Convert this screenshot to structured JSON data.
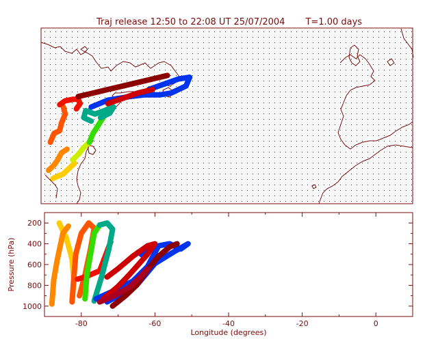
{
  "title": "Traj release 12:50 to 22:08 UT 25/07/2004",
  "time_label": "T=1.00 days",
  "colors": {
    "frame": "#7a0a0a",
    "dots": "#7a0a0a"
  },
  "chart_data": [
    {
      "type": "map",
      "lon_range": [
        -90,
        10
      ],
      "lat_range": [
        20,
        70
      ],
      "grid": "dotted",
      "series": [
        {
          "color": "#ffcc00",
          "points": [
            [
              -86.8,
              27.2
            ],
            [
              -85.5,
              27.8
            ],
            [
              -84,
              28.5
            ],
            [
              -82.5,
              30
            ],
            [
              -81,
              31.5
            ]
          ]
        },
        {
          "color": "#ff8800",
          "points": [
            [
              -88,
              29.5
            ],
            [
              -86.5,
              31
            ],
            [
              -85.5,
              32.5
            ],
            [
              -84.5,
              34.5
            ],
            [
              -83,
              35.5
            ]
          ]
        },
        {
          "color": "#ff5500",
          "points": [
            [
              -87.5,
              37.5
            ],
            [
              -86.5,
              40
            ],
            [
              -85,
              40.8
            ],
            [
              -84.5,
              43
            ],
            [
              -83.5,
              45.5
            ],
            [
              -84,
              47.5
            ]
          ]
        },
        {
          "color": "#ee1100",
          "points": [
            [
              -85,
              48.2
            ],
            [
              -83.5,
              49.3
            ],
            [
              -81.5,
              49.7
            ],
            [
              -80,
              49.7
            ],
            [
              -79.5,
              48.5
            ],
            [
              -80.5,
              47
            ]
          ]
        },
        {
          "color": "#ccee00",
          "points": [
            [
              -81.5,
              32.5
            ],
            [
              -80,
              34
            ],
            [
              -78.5,
              36
            ],
            [
              -77,
              37.5
            ]
          ]
        },
        {
          "color": "#33dd00",
          "points": [
            [
              -77,
              37.5
            ],
            [
              -76,
              40
            ],
            [
              -74.5,
              42.5
            ],
            [
              -73,
              45
            ],
            [
              -72,
              47
            ]
          ]
        },
        {
          "color": "#00aa88",
          "points": [
            [
              -74,
              44.5
            ],
            [
              -71.5,
              45.8
            ],
            [
              -70.5,
              47.5
            ],
            [
              -73,
              46.5
            ],
            [
              -75.5,
              45.5
            ],
            [
              -78,
              46.5
            ],
            [
              -78.5,
              44.5
            ],
            [
              -76.5,
              43.5
            ]
          ]
        },
        {
          "color": "#0033ee",
          "points": [
            [
              -76.5,
              47.5
            ],
            [
              -72,
              49.5
            ],
            [
              -66,
              50.5
            ],
            [
              -62,
              51
            ],
            [
              -58,
              51
            ],
            [
              -55,
              51.5
            ],
            [
              -51,
              53.5
            ],
            [
              -50,
              56
            ],
            [
              -53,
              55.5
            ],
            [
              -57,
              54
            ],
            [
              -61,
              52.5
            ]
          ]
        },
        {
          "color": "#8b0000",
          "points": [
            [
              -80,
              50.5
            ],
            [
              -76,
              51.5
            ],
            [
              -72,
              52.5
            ],
            [
              -68,
              53.5
            ],
            [
              -64,
              54.5
            ],
            [
              -60,
              55.5
            ],
            [
              -56,
              56.5
            ]
          ]
        },
        {
          "color": "#cc0000",
          "points": [
            [
              -72,
              48.5
            ],
            [
              -68,
              50
            ],
            [
              -64,
              51.5
            ],
            [
              -60,
              52.5
            ]
          ]
        }
      ]
    },
    {
      "type": "line",
      "xlabel": "Longitude  (degrees)",
      "ylabel": "Pressure  (hPa)",
      "xlim": [
        -90,
        10
      ],
      "ylim": [
        1100,
        100
      ],
      "x_ticks": [
        -80,
        -60,
        -40,
        -20,
        0
      ],
      "y_ticks": [
        200,
        400,
        600,
        800,
        1000
      ],
      "series": [
        {
          "color": "#ffcc00",
          "points": [
            [
              -86,
              200
            ],
            [
              -84,
              350
            ],
            [
              -82.5,
              550
            ],
            [
              -82,
              750
            ],
            [
              -82.5,
              950
            ]
          ]
        },
        {
          "color": "#ff8800",
          "points": [
            [
              -88,
              980
            ],
            [
              -87.5,
              750
            ],
            [
              -86.5,
              550
            ],
            [
              -85,
              300
            ],
            [
              -83.5,
              230
            ]
          ]
        },
        {
          "color": "#ff5500",
          "points": [
            [
              -82.5,
              960
            ],
            [
              -82,
              720
            ],
            [
              -81.5,
              500
            ],
            [
              -80,
              300
            ],
            [
              -78,
              200
            ],
            [
              -76.5,
              250
            ],
            [
              -77.5,
              450
            ],
            [
              -79,
              700
            ],
            [
              -80.5,
              900
            ]
          ]
        },
        {
          "color": "#ee1100",
          "points": [
            [
              -81,
              740
            ],
            [
              -79,
              720
            ],
            [
              -77,
              690
            ],
            [
              -75,
              660
            ],
            [
              -73.5,
              520
            ],
            [
              -72,
              380
            ]
          ]
        },
        {
          "color": "#33dd00",
          "points": [
            [
              -79,
              930
            ],
            [
              -78.5,
              700
            ],
            [
              -77.5,
              500
            ],
            [
              -76.5,
              300
            ],
            [
              -75,
              220
            ]
          ]
        },
        {
          "color": "#00aa88",
          "points": [
            [
              -75,
              220
            ],
            [
              -73,
              200
            ],
            [
              -71.5,
              260
            ],
            [
              -72.5,
              450
            ],
            [
              -74.5,
              720
            ],
            [
              -76.5,
              950
            ]
          ]
        },
        {
          "color": "#0033ee",
          "points": [
            [
              -76,
              930
            ],
            [
              -71,
              850
            ],
            [
              -66,
              760
            ],
            [
              -62,
              620
            ],
            [
              -59,
              420
            ],
            [
              -56,
              400
            ],
            [
              -53,
              450
            ],
            [
              -51,
              400
            ],
            [
              -55,
              480
            ],
            [
              -60,
              590
            ],
            [
              -65,
              800
            ],
            [
              -70,
              900
            ],
            [
              -73,
              960
            ]
          ]
        },
        {
          "color": "#0033ee",
          "points": [
            [
              -62,
              420
            ],
            [
              -63,
              520
            ],
            [
              -64.5,
              480
            ]
          ]
        },
        {
          "color": "#8b0000",
          "points": [
            [
              -71.5,
              1000
            ],
            [
              -68,
              900
            ],
            [
              -65,
              800
            ],
            [
              -62,
              650
            ],
            [
              -59,
              520
            ],
            [
              -56,
              430
            ],
            [
              -54,
              400
            ]
          ]
        },
        {
          "color": "#cc0000",
          "points": [
            [
              -74,
              930
            ],
            [
              -70,
              810
            ],
            [
              -67,
              700
            ],
            [
              -64,
              580
            ],
            [
              -62,
              500
            ],
            [
              -60,
              400
            ],
            [
              -62,
              420
            ],
            [
              -66,
              520
            ],
            [
              -70,
              640
            ],
            [
              -73,
              720
            ]
          ]
        },
        {
          "color": "#aa0022",
          "points": [
            [
              -75,
              960
            ],
            [
              -71,
              900
            ],
            [
              -67,
              820
            ],
            [
              -64,
              720
            ],
            [
              -62,
              640
            ]
          ]
        }
      ]
    }
  ]
}
